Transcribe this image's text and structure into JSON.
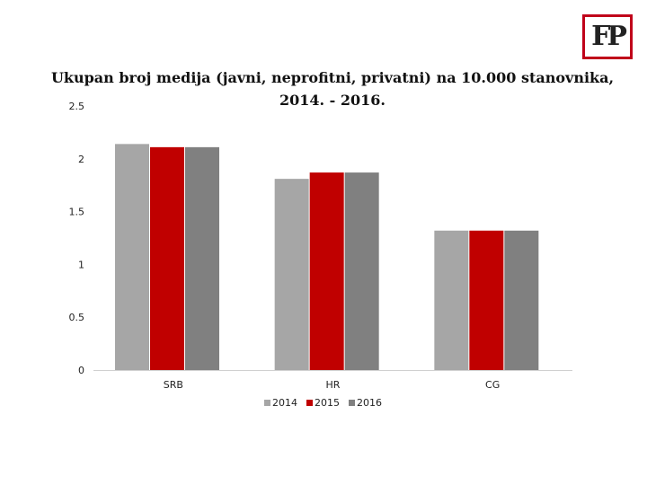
{
  "logo": {
    "text": "FP"
  },
  "chart_data": {
    "type": "bar",
    "title": "Ukupan broj medija (javni, neprofitni, privatni) na 10.000 stanovnika, 2014. - 2016.",
    "categories": [
      "SRB",
      "HR",
      "CG"
    ],
    "series": [
      {
        "name": "2014",
        "color": "#a6a6a6",
        "values": [
          2.14,
          1.81,
          1.32
        ]
      },
      {
        "name": "2015",
        "color": "#c00000",
        "values": [
          2.11,
          1.87,
          1.32
        ]
      },
      {
        "name": "2016",
        "color": "#808080",
        "values": [
          2.11,
          1.87,
          1.32
        ]
      }
    ],
    "yticks": [
      "0",
      "0.5",
      "1",
      "1.5",
      "2",
      "2.5"
    ],
    "ylim": [
      0,
      2.5
    ],
    "grid": false,
    "legend_position": "bottom"
  }
}
